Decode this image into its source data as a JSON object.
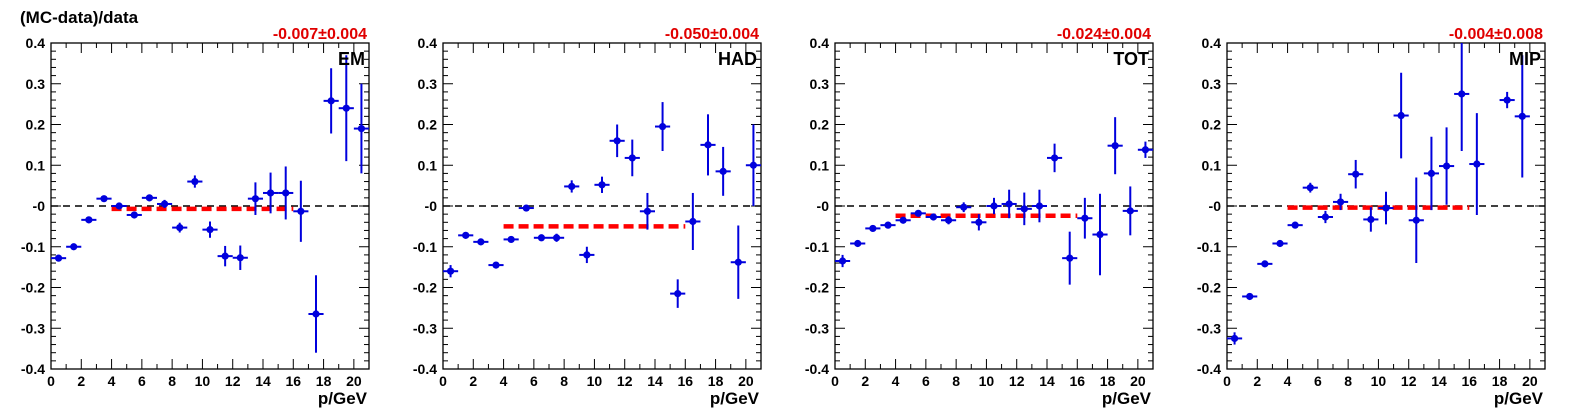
{
  "figure": {
    "ylabel": "(MC-data)/data",
    "colors": {
      "points": "#0000dd",
      "fit": "#ff0000",
      "zero_line": "#000000",
      "fit_label": "#e00000"
    }
  },
  "chart_data": [
    {
      "type": "scatter",
      "panel_label": "EM",
      "fit_label": "-0.007±0.004",
      "xlabel": "p/GeV",
      "xlim": [
        0,
        21
      ],
      "ylim": [
        -0.4,
        0.4
      ],
      "x_ticks": [
        "0",
        "2",
        "4",
        "6",
        "8",
        "10",
        "12",
        "14",
        "16",
        "18",
        "20"
      ],
      "y_ticks": [
        "-0.4",
        "-0.3",
        "-0.2",
        "-0.1",
        "-0",
        "0.1",
        "0.2",
        "0.3",
        "0.4"
      ],
      "zero_line": 0,
      "fit": {
        "value": -0.007,
        "error": 0.004,
        "x_range": [
          4,
          16
        ]
      },
      "points": [
        {
          "x": 0.5,
          "y": -0.128,
          "yerr": 0.006
        },
        {
          "x": 1.5,
          "y": -0.1,
          "yerr": 0.005
        },
        {
          "x": 2.5,
          "y": -0.034,
          "yerr": 0.005
        },
        {
          "x": 3.5,
          "y": 0.018,
          "yerr": 0.005
        },
        {
          "x": 4.5,
          "y": 0.0,
          "yerr": 0.006
        },
        {
          "x": 5.5,
          "y": -0.022,
          "yerr": 0.007
        },
        {
          "x": 6.5,
          "y": 0.02,
          "yerr": 0.008
        },
        {
          "x": 7.5,
          "y": 0.005,
          "yerr": 0.01
        },
        {
          "x": 8.5,
          "y": -0.053,
          "yerr": 0.012
        },
        {
          "x": 9.5,
          "y": 0.06,
          "yerr": 0.015
        },
        {
          "x": 10.5,
          "y": -0.058,
          "yerr": 0.02
        },
        {
          "x": 11.5,
          "y": -0.123,
          "yerr": 0.025
        },
        {
          "x": 12.5,
          "y": -0.127,
          "yerr": 0.03
        },
        {
          "x": 13.5,
          "y": 0.018,
          "yerr": 0.04
        },
        {
          "x": 14.5,
          "y": 0.032,
          "yerr": 0.05
        },
        {
          "x": 15.5,
          "y": 0.032,
          "yerr": 0.065
        },
        {
          "x": 16.5,
          "y": -0.013,
          "yerr": 0.075
        },
        {
          "x": 17.5,
          "y": -0.265,
          "yerr": 0.095
        },
        {
          "x": 18.5,
          "y": 0.258,
          "yerr": 0.08
        },
        {
          "x": 19.5,
          "y": 0.24,
          "yerr": 0.13
        },
        {
          "x": 20.5,
          "y": 0.19,
          "yerr": 0.11
        }
      ]
    },
    {
      "type": "scatter",
      "panel_label": "HAD",
      "fit_label": "-0.050±0.004",
      "xlabel": "p/GeV",
      "xlim": [
        0,
        21
      ],
      "ylim": [
        -0.4,
        0.4
      ],
      "x_ticks": [
        "0",
        "2",
        "4",
        "6",
        "8",
        "10",
        "12",
        "14",
        "16",
        "18",
        "20"
      ],
      "y_ticks": [
        "-0.4",
        "-0.3",
        "-0.2",
        "-0.1",
        "-0",
        "0.1",
        "0.2",
        "0.3",
        "0.4"
      ],
      "zero_line": 0,
      "fit": {
        "value": -0.05,
        "error": 0.004,
        "x_range": [
          4,
          16
        ]
      },
      "points": [
        {
          "x": 0.5,
          "y": -0.16,
          "yerr": 0.015
        },
        {
          "x": 1.5,
          "y": -0.072,
          "yerr": 0.006
        },
        {
          "x": 2.5,
          "y": -0.088,
          "yerr": 0.006
        },
        {
          "x": 3.5,
          "y": -0.145,
          "yerr": 0.006
        },
        {
          "x": 4.5,
          "y": -0.082,
          "yerr": 0.006
        },
        {
          "x": 5.5,
          "y": -0.005,
          "yerr": 0.006
        },
        {
          "x": 6.5,
          "y": -0.078,
          "yerr": 0.008
        },
        {
          "x": 7.5,
          "y": -0.078,
          "yerr": 0.01
        },
        {
          "x": 8.5,
          "y": 0.048,
          "yerr": 0.015
        },
        {
          "x": 9.5,
          "y": -0.12,
          "yerr": 0.02
        },
        {
          "x": 10.5,
          "y": 0.052,
          "yerr": 0.02
        },
        {
          "x": 11.5,
          "y": 0.16,
          "yerr": 0.04
        },
        {
          "x": 12.5,
          "y": 0.118,
          "yerr": 0.045
        },
        {
          "x": 13.5,
          "y": -0.013,
          "yerr": 0.045
        },
        {
          "x": 14.5,
          "y": 0.195,
          "yerr": 0.06
        },
        {
          "x": 15.5,
          "y": -0.215,
          "yerr": 0.035
        },
        {
          "x": 16.5,
          "y": -0.038,
          "yerr": 0.07
        },
        {
          "x": 17.5,
          "y": 0.15,
          "yerr": 0.075
        },
        {
          "x": 18.5,
          "y": 0.085,
          "yerr": 0.06
        },
        {
          "x": 19.5,
          "y": -0.138,
          "yerr": 0.09
        },
        {
          "x": 20.5,
          "y": 0.1,
          "yerr": 0.1
        }
      ]
    },
    {
      "type": "scatter",
      "panel_label": "TOT",
      "fit_label": "-0.024±0.004",
      "xlabel": "p/GeV",
      "xlim": [
        0,
        21
      ],
      "ylim": [
        -0.4,
        0.4
      ],
      "x_ticks": [
        "0",
        "2",
        "4",
        "6",
        "8",
        "10",
        "12",
        "14",
        "16",
        "18",
        "20"
      ],
      "y_ticks": [
        "-0.4",
        "-0.3",
        "-0.2",
        "-0.1",
        "-0",
        "0.1",
        "0.2",
        "0.3",
        "0.4"
      ],
      "zero_line": 0,
      "fit": {
        "value": -0.024,
        "error": 0.004,
        "x_range": [
          4,
          16
        ]
      },
      "points": [
        {
          "x": 0.5,
          "y": -0.135,
          "yerr": 0.015
        },
        {
          "x": 1.5,
          "y": -0.092,
          "yerr": 0.006
        },
        {
          "x": 2.5,
          "y": -0.055,
          "yerr": 0.006
        },
        {
          "x": 3.5,
          "y": -0.047,
          "yerr": 0.005
        },
        {
          "x": 4.5,
          "y": -0.035,
          "yerr": 0.006
        },
        {
          "x": 5.5,
          "y": -0.018,
          "yerr": 0.006
        },
        {
          "x": 6.5,
          "y": -0.027,
          "yerr": 0.008
        },
        {
          "x": 7.5,
          "y": -0.035,
          "yerr": 0.01
        },
        {
          "x": 8.5,
          "y": -0.003,
          "yerr": 0.012
        },
        {
          "x": 9.5,
          "y": -0.04,
          "yerr": 0.02
        },
        {
          "x": 10.5,
          "y": 0.0,
          "yerr": 0.02
        },
        {
          "x": 11.5,
          "y": 0.005,
          "yerr": 0.035
        },
        {
          "x": 12.5,
          "y": -0.007,
          "yerr": 0.04
        },
        {
          "x": 13.5,
          "y": 0.0,
          "yerr": 0.04
        },
        {
          "x": 14.5,
          "y": 0.118,
          "yerr": 0.035
        },
        {
          "x": 15.5,
          "y": -0.128,
          "yerr": 0.065
        },
        {
          "x": 16.5,
          "y": -0.03,
          "yerr": 0.05
        },
        {
          "x": 17.5,
          "y": -0.07,
          "yerr": 0.1
        },
        {
          "x": 18.5,
          "y": 0.148,
          "yerr": 0.07
        },
        {
          "x": 19.5,
          "y": -0.012,
          "yerr": 0.06
        },
        {
          "x": 20.5,
          "y": 0.138,
          "yerr": 0.02
        }
      ]
    },
    {
      "type": "scatter",
      "panel_label": "MIP",
      "fit_label": "-0.004±0.008",
      "xlabel": "p/GeV",
      "xlim": [
        0,
        21
      ],
      "ylim": [
        -0.4,
        0.4
      ],
      "x_ticks": [
        "0",
        "2",
        "4",
        "6",
        "8",
        "10",
        "12",
        "14",
        "16",
        "18",
        "20"
      ],
      "y_ticks": [
        "-0.4",
        "-0.3",
        "-0.2",
        "-0.1",
        "-0",
        "0.1",
        "0.2",
        "0.3",
        "0.4"
      ],
      "zero_line": 0,
      "fit": {
        "value": -0.004,
        "error": 0.008,
        "x_range": [
          4,
          16
        ]
      },
      "points": [
        {
          "x": 0.5,
          "y": -0.325,
          "yerr": 0.015
        },
        {
          "x": 1.5,
          "y": -0.222,
          "yerr": 0.006
        },
        {
          "x": 2.5,
          "y": -0.142,
          "yerr": 0.006
        },
        {
          "x": 3.5,
          "y": -0.092,
          "yerr": 0.006
        },
        {
          "x": 4.5,
          "y": -0.047,
          "yerr": 0.008
        },
        {
          "x": 5.5,
          "y": 0.045,
          "yerr": 0.012
        },
        {
          "x": 6.5,
          "y": -0.027,
          "yerr": 0.015
        },
        {
          "x": 7.5,
          "y": 0.01,
          "yerr": 0.02
        },
        {
          "x": 8.5,
          "y": 0.078,
          "yerr": 0.035
        },
        {
          "x": 9.5,
          "y": -0.033,
          "yerr": 0.03
        },
        {
          "x": 10.5,
          "y": -0.005,
          "yerr": 0.04
        },
        {
          "x": 11.5,
          "y": 0.222,
          "yerr": 0.105
        },
        {
          "x": 12.5,
          "y": -0.035,
          "yerr": 0.105
        },
        {
          "x": 13.5,
          "y": 0.08,
          "yerr": 0.09
        },
        {
          "x": 14.5,
          "y": 0.098,
          "yerr": 0.095
        },
        {
          "x": 15.5,
          "y": 0.275,
          "yerr": 0.14
        },
        {
          "x": 16.5,
          "y": 0.103,
          "yerr": 0.125
        },
        {
          "x": 18.5,
          "y": 0.26,
          "yerr": 0.02
        },
        {
          "x": 19.5,
          "y": 0.22,
          "yerr": 0.15
        }
      ]
    }
  ]
}
